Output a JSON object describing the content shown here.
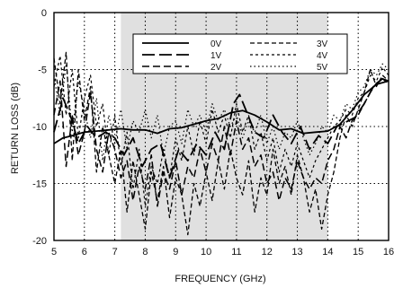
{
  "chart_data": {
    "type": "line",
    "title": "",
    "xlabel": "FREQUENCY (GHz)",
    "ylabel": "RETURN LOSS (dB)",
    "xlim": [
      5,
      16
    ],
    "ylim": [
      -20,
      0
    ],
    "xticks": [
      5,
      6,
      7,
      8,
      9,
      10,
      11,
      12,
      13,
      14,
      15,
      16
    ],
    "yticks": [
      0,
      -5,
      -10,
      -15,
      -20
    ],
    "grid": "dotted",
    "shaded_band": {
      "x_from": 7.2,
      "x_to": 14.0,
      "color": "#e0e0e0"
    },
    "legend_placement": "top-center",
    "series": [
      {
        "name": "0V",
        "dash": "solid",
        "x": [
          5.0,
          5.3,
          5.6,
          6.0,
          6.4,
          6.8,
          7.2,
          7.6,
          8.0,
          8.4,
          8.8,
          9.2,
          9.6,
          10.0,
          10.4,
          10.8,
          11.2,
          11.6,
          12.0,
          12.4,
          12.8,
          13.2,
          13.6,
          14.0,
          14.4,
          14.8,
          15.2,
          15.6,
          16.0
        ],
        "y": [
          -11.5,
          -11.0,
          -10.8,
          -10.5,
          -10.4,
          -10.3,
          -10.2,
          -10.3,
          -10.3,
          -10.6,
          -10.2,
          -10.1,
          -9.8,
          -9.5,
          -9.3,
          -8.8,
          -8.6,
          -9.0,
          -9.6,
          -10.3,
          -10.2,
          -10.6,
          -10.5,
          -10.4,
          -9.8,
          -8.6,
          -7.2,
          -6.3,
          -6.0
        ]
      },
      {
        "name": "1V",
        "dash": "long-dash",
        "x": [
          5.0,
          5.3,
          5.6,
          5.8,
          6.1,
          6.4,
          6.7,
          7.0,
          7.3,
          7.6,
          7.9,
          8.2,
          8.5,
          8.8,
          9.1,
          9.4,
          9.7,
          10.0,
          10.3,
          10.6,
          10.9,
          11.1,
          11.3,
          11.6,
          11.9,
          12.2,
          12.5,
          12.8,
          13.1,
          13.4,
          13.7,
          14.0,
          14.3,
          14.6,
          14.9,
          15.2,
          15.5,
          15.8,
          16.0
        ],
        "y": [
          -10.5,
          -7.5,
          -9.5,
          -11.5,
          -10.0,
          -11.0,
          -10.5,
          -11.0,
          -12.5,
          -11.0,
          -13.5,
          -12.0,
          -11.5,
          -14.5,
          -12.0,
          -13.0,
          -11.5,
          -12.5,
          -10.5,
          -12.0,
          -8.0,
          -7.2,
          -8.5,
          -10.5,
          -11.0,
          -9.0,
          -10.5,
          -11.5,
          -10.0,
          -12.0,
          -10.8,
          -11.5,
          -10.0,
          -9.6,
          -9.2,
          -8.0,
          -6.5,
          -5.8,
          -6.2
        ]
      },
      {
        "name": "2V",
        "dash": "dash",
        "x": [
          5.0,
          5.2,
          5.4,
          5.6,
          5.8,
          6.0,
          6.2,
          6.4,
          6.6,
          6.8,
          7.0,
          7.2,
          7.4,
          7.6,
          7.8,
          8.0,
          8.2,
          8.4,
          8.6,
          8.8,
          9.0,
          9.2,
          9.4,
          9.6,
          9.8,
          10.0,
          10.2,
          10.4,
          10.6,
          10.8,
          11.0,
          11.2,
          11.4,
          11.6,
          11.8,
          12.0,
          12.2,
          12.4,
          12.6,
          12.8,
          13.0,
          13.2,
          13.4,
          13.6,
          13.8,
          14.0,
          14.2,
          14.4,
          14.6,
          14.8,
          15.0,
          15.2,
          15.4,
          15.6,
          15.8,
          16.0
        ],
        "y": [
          -9.0,
          -6.0,
          -13.5,
          -9.0,
          -12.5,
          -10.5,
          -7.0,
          -12.0,
          -14.0,
          -10.5,
          -12.0,
          -14.5,
          -13.0,
          -16.5,
          -13.5,
          -15.5,
          -12.5,
          -17.0,
          -14.0,
          -15.5,
          -13.0,
          -16.0,
          -13.5,
          -14.5,
          -12.0,
          -14.0,
          -11.5,
          -13.0,
          -10.0,
          -12.5,
          -9.5,
          -12.0,
          -11.0,
          -13.5,
          -12.5,
          -15.0,
          -14.0,
          -16.5,
          -14.5,
          -15.5,
          -13.0,
          -14.5,
          -15.5,
          -14.5,
          -15.0,
          -13.0,
          -12.0,
          -10.0,
          -11.0,
          -9.5,
          -9.0,
          -8.0,
          -7.0,
          -6.2,
          -5.8,
          -6.0
        ]
      },
      {
        "name": "3V",
        "dash": "short-dash",
        "x": [
          5.0,
          5.2,
          5.4,
          5.6,
          5.8,
          6.0,
          6.2,
          6.4,
          6.6,
          6.8,
          7.0,
          7.2,
          7.4,
          7.6,
          7.8,
          8.0,
          8.2,
          8.4,
          8.6,
          8.8,
          9.0,
          9.2,
          9.4,
          9.6,
          9.8,
          10.0,
          10.2,
          10.4,
          10.6,
          10.8,
          11.0,
          11.2,
          11.4,
          11.6,
          11.8,
          12.0,
          12.2,
          12.4,
          12.6,
          12.8,
          13.0,
          13.2,
          13.4,
          13.6,
          13.8,
          14.0,
          14.2,
          14.4,
          14.6,
          14.8,
          15.0,
          15.2,
          15.4,
          15.6,
          15.8,
          16.0
        ],
        "y": [
          -4.0,
          -8.0,
          -3.5,
          -13.0,
          -5.0,
          -9.5,
          -6.5,
          -14.0,
          -10.0,
          -12.5,
          -15.0,
          -12.0,
          -17.5,
          -13.0,
          -16.0,
          -19.0,
          -14.0,
          -16.5,
          -13.5,
          -18.0,
          -14.5,
          -16.0,
          -19.5,
          -15.0,
          -17.0,
          -14.0,
          -16.5,
          -13.0,
          -15.5,
          -12.0,
          -14.5,
          -16.0,
          -13.0,
          -17.5,
          -14.5,
          -16.0,
          -12.0,
          -15.0,
          -13.5,
          -16.0,
          -12.5,
          -14.5,
          -17.5,
          -15.5,
          -19.0,
          -16.0,
          -14.0,
          -11.0,
          -9.0,
          -10.0,
          -8.5,
          -7.0,
          -5.0,
          -6.5,
          -5.5,
          -6.0
        ]
      },
      {
        "name": "4V",
        "dash": "fine-dash",
        "x": [
          5.0,
          5.2,
          5.4,
          5.6,
          5.8,
          6.0,
          6.2,
          6.4,
          6.6,
          6.8,
          7.0,
          7.2,
          7.4,
          7.6,
          7.8,
          8.0,
          8.2,
          8.4,
          8.6,
          8.8,
          9.0,
          9.2,
          9.4,
          9.6,
          9.8,
          10.0,
          10.2,
          10.4,
          10.6,
          10.8,
          11.0,
          11.2,
          11.4,
          11.6,
          11.8,
          12.0,
          12.2,
          12.4,
          12.6,
          12.8,
          13.0,
          13.2,
          13.4,
          13.6,
          13.8,
          14.0,
          14.2,
          14.4,
          14.6,
          14.8,
          15.0,
          15.2,
          15.4,
          15.6,
          15.8,
          16.0
        ],
        "y": [
          -6.5,
          -3.8,
          -9.0,
          -5.0,
          -11.0,
          -7.5,
          -5.5,
          -10.0,
          -8.0,
          -12.5,
          -9.0,
          -13.5,
          -10.5,
          -15.5,
          -12.0,
          -17.0,
          -13.5,
          -15.0,
          -12.0,
          -14.5,
          -11.0,
          -13.0,
          -10.0,
          -12.5,
          -9.5,
          -11.5,
          -8.5,
          -10.5,
          -9.0,
          -11.0,
          -8.0,
          -10.5,
          -9.0,
          -12.0,
          -10.5,
          -13.0,
          -11.0,
          -14.0,
          -12.0,
          -13.5,
          -11.5,
          -13.0,
          -14.5,
          -13.0,
          -12.0,
          -11.0,
          -10.0,
          -9.5,
          -8.5,
          -9.0,
          -7.5,
          -7.0,
          -5.5,
          -6.0,
          -4.8,
          -5.5
        ]
      },
      {
        "name": "5V",
        "dash": "dot",
        "x": [
          5.0,
          5.2,
          5.4,
          5.6,
          5.8,
          6.0,
          6.2,
          6.4,
          6.6,
          6.8,
          7.0,
          7.2,
          7.4,
          7.6,
          7.8,
          8.0,
          8.2,
          8.4,
          8.6,
          8.8,
          9.0,
          9.2,
          9.4,
          9.6,
          9.8,
          10.0,
          10.2,
          10.4,
          10.6,
          10.8,
          11.0,
          11.2,
          11.4,
          11.6,
          11.8,
          12.0,
          12.2,
          12.4,
          12.6,
          12.8,
          13.0,
          13.2,
          13.4,
          13.6,
          13.8,
          14.0,
          14.2,
          14.4,
          14.6,
          14.8,
          15.0,
          15.2,
          15.4,
          15.6,
          15.8,
          16.0
        ],
        "y": [
          -5.5,
          -9.0,
          -4.5,
          -10.5,
          -6.0,
          -8.5,
          -11.0,
          -7.5,
          -13.0,
          -9.0,
          -11.5,
          -8.5,
          -12.0,
          -9.5,
          -10.5,
          -8.5,
          -11.0,
          -9.0,
          -12.5,
          -10.0,
          -9.5,
          -11.5,
          -8.5,
          -10.0,
          -9.0,
          -10.5,
          -8.0,
          -9.5,
          -8.5,
          -10.0,
          -9.0,
          -11.0,
          -9.5,
          -10.5,
          -9.0,
          -11.5,
          -10.0,
          -12.0,
          -10.5,
          -11.0,
          -9.5,
          -11.0,
          -12.5,
          -11.5,
          -10.0,
          -10.5,
          -9.0,
          -9.5,
          -8.0,
          -8.5,
          -7.0,
          -6.5,
          -5.0,
          -5.5,
          -4.5,
          -5.0
        ]
      }
    ]
  }
}
